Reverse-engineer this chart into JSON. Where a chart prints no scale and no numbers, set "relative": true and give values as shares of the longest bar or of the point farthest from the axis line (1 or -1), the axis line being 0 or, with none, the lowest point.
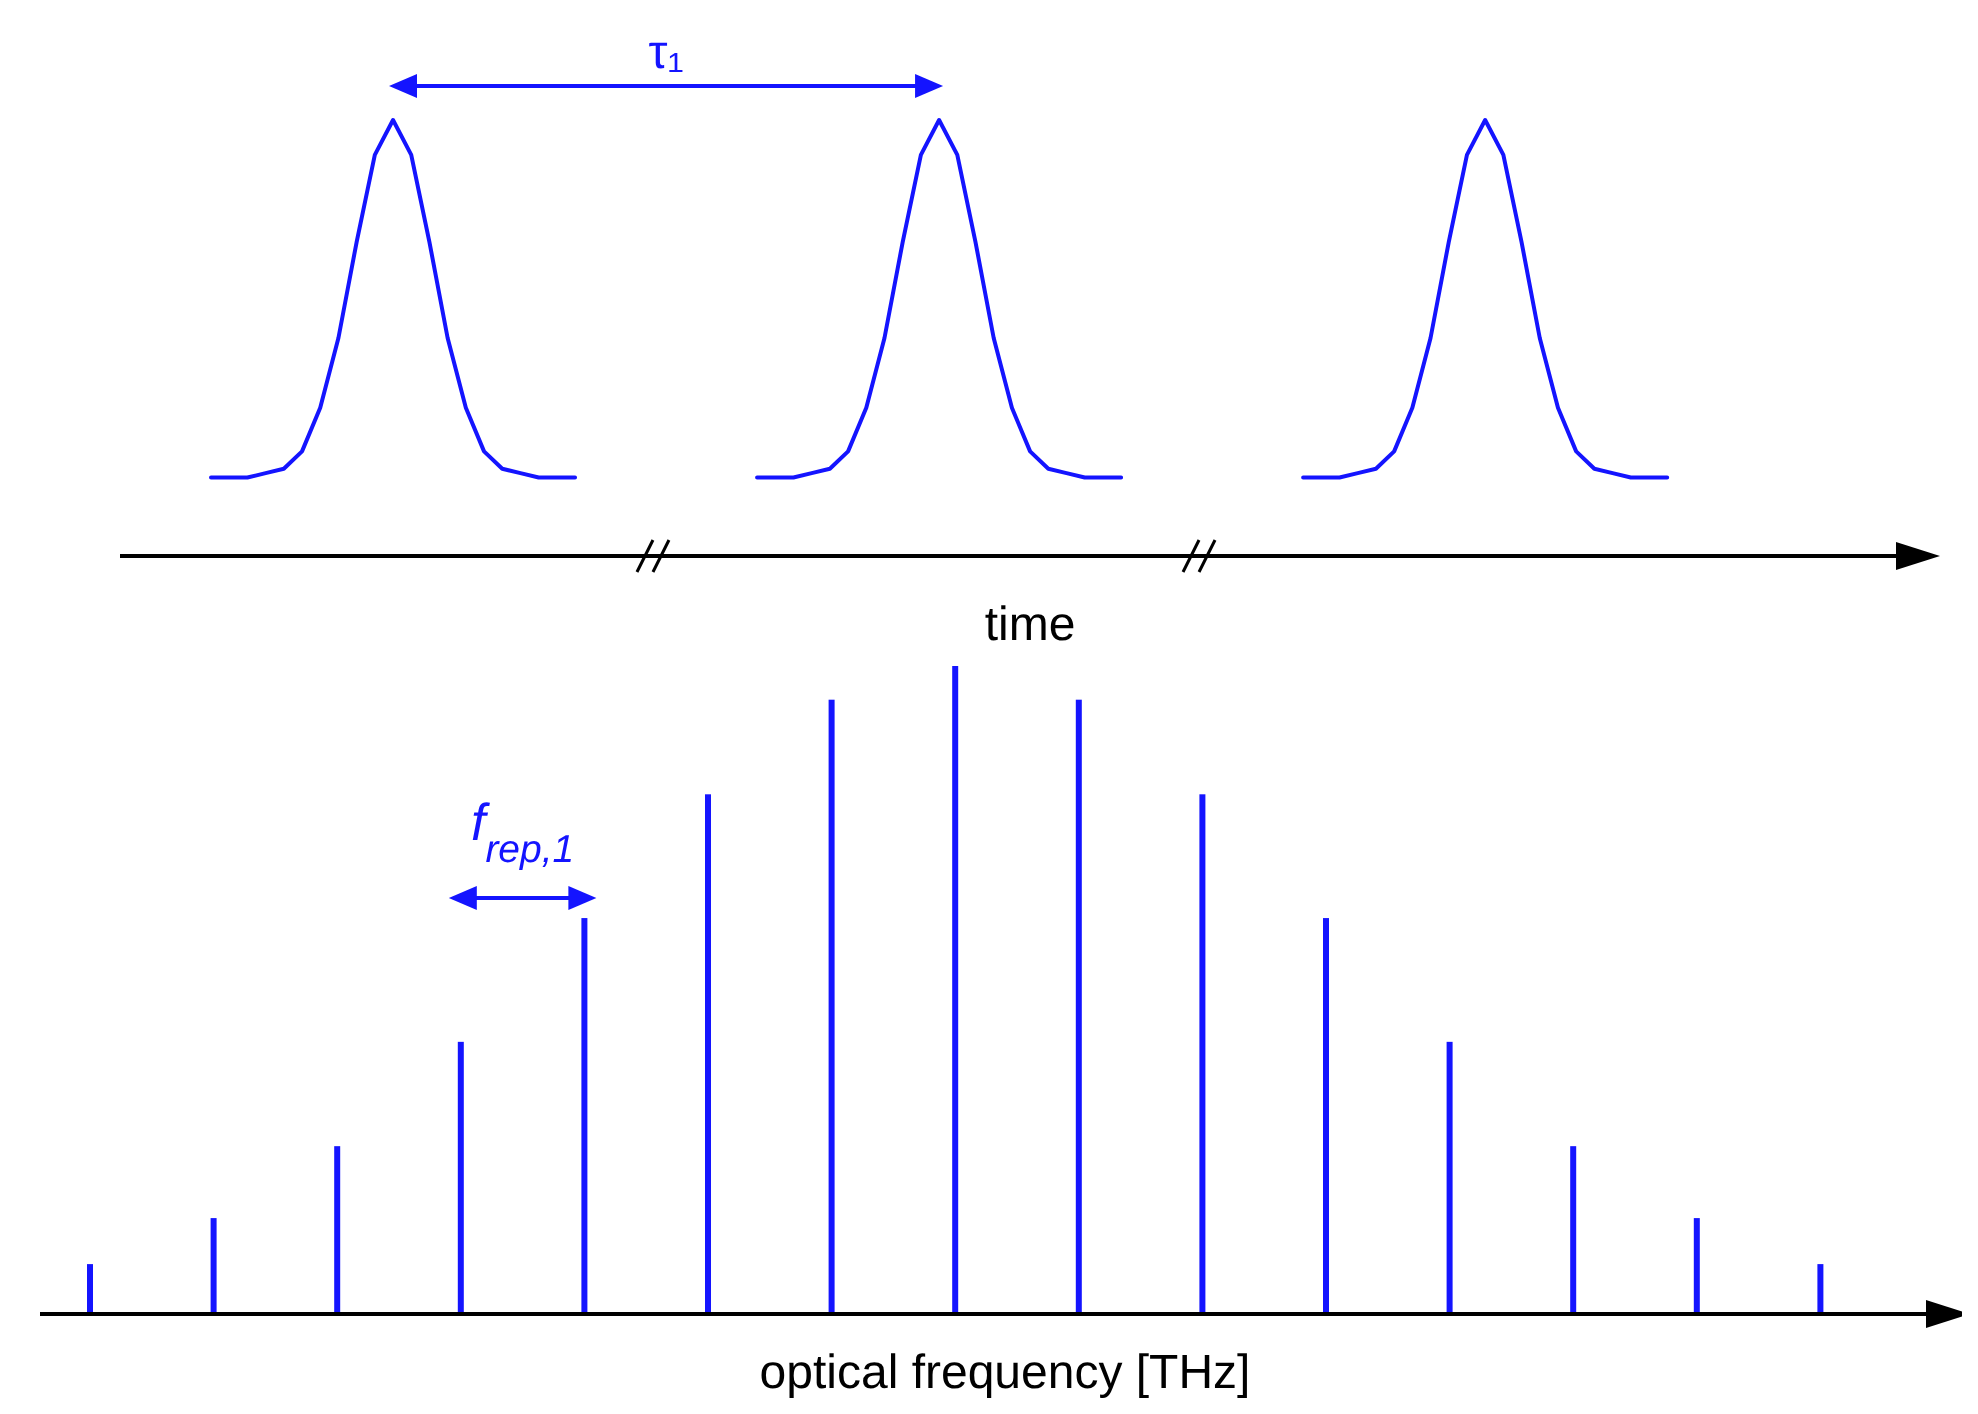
{
  "chart_data": [
    {
      "type": "line",
      "relative": true,
      "xlabel": "time",
      "annotations": [
        "τ₁"
      ],
      "categories": [
        null,
        null,
        null,
        null,
        null,
        null,
        null,
        null,
        null,
        null,
        null,
        null,
        null,
        null,
        null,
        null,
        null,
        null,
        null,
        null,
        null,
        null,
        null,
        null,
        null,
        null,
        null,
        null,
        null,
        null,
        null,
        null,
        null,
        null,
        null,
        null,
        null,
        null,
        null,
        null,
        null,
        null,
        null,
        null,
        null,
        null,
        null,
        null,
        null,
        null,
        null,
        null,
        null,
        null,
        null,
        null,
        null,
        null,
        null,
        null,
        null,
        null,
        null,
        null,
        null,
        null,
        null,
        null,
        null,
        null,
        null,
        null,
        null,
        null,
        null,
        null,
        null,
        null,
        null,
        null,
        null,
        null,
        null,
        null,
        null,
        null,
        null,
        null,
        null,
        null,
        null,
        null,
        null,
        null,
        null,
        null,
        null,
        null,
        null,
        null
      ],
      "series": [
        {
          "color": "#1414ff",
          "values": [
            null,
            null,
            null,
            null,
            null,
            0.18,
            0.18,
            0.18,
            0.19,
            0.2,
            0.24,
            0.34,
            0.5,
            0.72,
            0.92,
            1,
            0.92,
            0.72,
            0.5,
            0.34,
            0.24,
            0.2,
            0.19,
            0.18,
            0.18,
            0.18,
            null,
            null,
            null,
            null,
            null,
            null,
            null,
            null,
            null,
            null,
            null,
            null,
            null,
            null,
            null,
            null,
            null,
            null,
            null,
            null,
            null,
            null,
            null,
            null,
            null,
            null,
            null,
            null,
            null,
            null,
            null,
            null,
            null,
            null,
            null,
            null,
            null,
            null,
            null,
            null,
            null,
            null,
            null,
            null,
            null,
            null,
            null,
            null,
            null,
            null,
            null,
            null,
            null,
            null,
            null,
            null,
            null,
            null,
            null,
            null,
            null,
            null,
            null,
            null,
            null,
            null,
            null,
            null,
            null,
            null,
            null,
            null,
            null,
            null
          ]
        },
        {
          "color": "#1414ff",
          "values": [
            null,
            null,
            null,
            null,
            null,
            null,
            null,
            null,
            null,
            null,
            null,
            null,
            null,
            null,
            null,
            null,
            null,
            null,
            null,
            null,
            null,
            null,
            null,
            null,
            null,
            null,
            null,
            null,
            null,
            null,
            null,
            null,
            null,
            null,
            null,
            0.18,
            0.18,
            0.18,
            0.19,
            0.2,
            0.24,
            0.34,
            0.5,
            0.72,
            0.92,
            1,
            0.92,
            0.72,
            0.5,
            0.34,
            0.24,
            0.2,
            0.19,
            0.18,
            0.18,
            0.18,
            null,
            null,
            null,
            null,
            null,
            null,
            null,
            null,
            null,
            null,
            null,
            null,
            null,
            null,
            null,
            null,
            null,
            null,
            null,
            null,
            null,
            null,
            null,
            null,
            null,
            null,
            null,
            null,
            null,
            null,
            null,
            null,
            null,
            null,
            null,
            null,
            null,
            null,
            null,
            null,
            null,
            null,
            null,
            null
          ]
        },
        {
          "color": "#1414ff",
          "values": [
            null,
            null,
            null,
            null,
            null,
            null,
            null,
            null,
            null,
            null,
            null,
            null,
            null,
            null,
            null,
            null,
            null,
            null,
            null,
            null,
            null,
            null,
            null,
            null,
            null,
            null,
            null,
            null,
            null,
            null,
            null,
            null,
            null,
            null,
            null,
            null,
            null,
            null,
            null,
            null,
            null,
            null,
            null,
            null,
            null,
            null,
            null,
            null,
            null,
            null,
            null,
            null,
            null,
            null,
            null,
            null,
            null,
            null,
            null,
            null,
            null,
            null,
            null,
            null,
            null,
            0.18,
            0.18,
            0.18,
            0.19,
            0.2,
            0.24,
            0.34,
            0.5,
            0.72,
            0.92,
            1,
            0.92,
            0.72,
            0.5,
            0.34,
            0.24,
            0.2,
            0.19,
            0.18,
            0.18,
            0.18,
            null,
            null,
            null,
            null,
            null,
            null,
            null,
            null,
            null,
            null,
            null,
            null,
            null,
            null
          ]
        }
      ]
    },
    {
      "type": "bar",
      "relative": true,
      "xlabel": "optical frequency [THz]",
      "annotations": [
        "f$_{rep,1}$"
      ],
      "categories": [
        null,
        null,
        null,
        null,
        null,
        null,
        null,
        null,
        null,
        null,
        null,
        null,
        null,
        null,
        null
      ],
      "series": [
        {
          "color": "#1414ff",
          "values": [
            0.077,
            0.148,
            0.259,
            0.42,
            0.611,
            0.802,
            0.948,
            1,
            0.948,
            0.802,
            0.611,
            0.42,
            0.259,
            0.148,
            0.077
          ]
        }
      ]
    }
  ]
}
